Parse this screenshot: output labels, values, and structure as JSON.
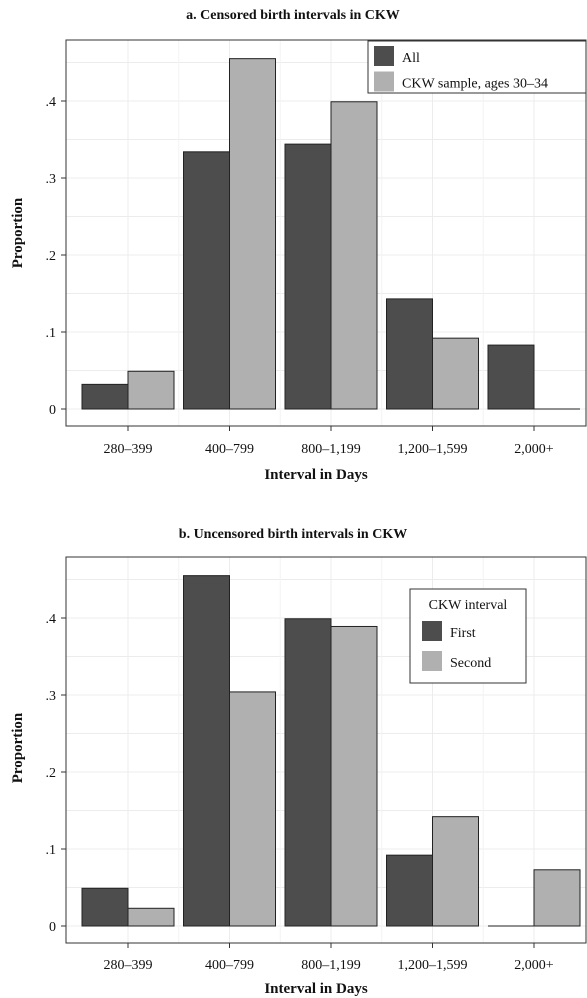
{
  "chart_data": [
    {
      "type": "bar",
      "title": "a. Censored birth intervals in CKW",
      "xlabel": "Interval in Days",
      "ylabel": "Proportion",
      "categories": [
        "280–399",
        "400–799",
        "800–1,199",
        "1,200–1,599",
        "2,000+"
      ],
      "ylim": [
        0,
        0.5
      ],
      "yticks": [
        0,
        0.1,
        0.2,
        0.3,
        0.4
      ],
      "ytick_labels": [
        "0",
        ".1",
        ".2",
        ".3",
        ".4"
      ],
      "grid": true,
      "legend": {
        "title": "",
        "position": "top-right"
      },
      "series": [
        {
          "name": "All",
          "color": "#4d4d4d",
          "values": [
            0.032,
            0.334,
            0.344,
            0.143,
            0.083
          ]
        },
        {
          "name": "CKW sample, ages 30–34",
          "color": "#b0b0b0",
          "values": [
            0.049,
            0.455,
            0.399,
            0.092,
            0.0
          ]
        }
      ]
    },
    {
      "type": "bar",
      "title": "b. Uncensored birth intervals in CKW",
      "xlabel": "Interval in Days",
      "ylabel": "Proportion",
      "categories": [
        "280–399",
        "400–799",
        "800–1,199",
        "1,200–1,599",
        "2,000+"
      ],
      "ylim": [
        0,
        0.5
      ],
      "yticks": [
        0,
        0.1,
        0.2,
        0.3,
        0.4
      ],
      "ytick_labels": [
        "0",
        ".1",
        ".2",
        ".3",
        ".4"
      ],
      "grid": true,
      "legend": {
        "title": "CKW interval",
        "position": "top-right"
      },
      "series": [
        {
          "name": "First",
          "color": "#4d4d4d",
          "values": [
            0.049,
            0.455,
            0.399,
            0.092,
            0.0
          ]
        },
        {
          "name": "Second",
          "color": "#b0b0b0",
          "values": [
            0.023,
            0.304,
            0.389,
            0.142,
            0.073
          ]
        }
      ]
    }
  ]
}
